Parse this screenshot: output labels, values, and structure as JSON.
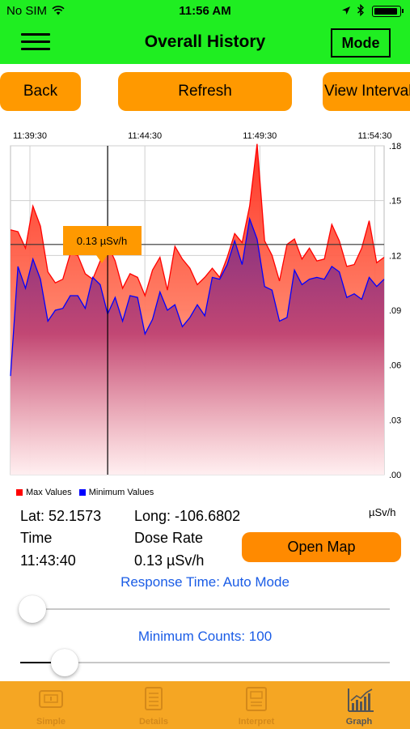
{
  "status_bar": {
    "carrier": "No SIM",
    "time": "11:56 AM"
  },
  "nav": {
    "title": "Overall History",
    "mode_label": "Mode",
    "menu_icon": "hamburger-menu-icon"
  },
  "buttons": {
    "back": "Back",
    "refresh": "Refresh",
    "view_interval": "View Interval"
  },
  "chart_data": {
    "type": "area",
    "x_tick_labels": [
      "11:39:30",
      "11:44:30",
      "11:49:30",
      "11:54:30"
    ],
    "y_tick_labels": [
      ".18",
      ".15",
      ".12",
      ".09",
      ".06",
      ".03",
      ".00"
    ],
    "ylim": [
      0,
      0.18
    ],
    "grid": true,
    "series": [
      {
        "name": "Max Values",
        "color": "#ff0000",
        "values": [
          0.134,
          0.133,
          0.124,
          0.147,
          0.136,
          0.111,
          0.105,
          0.107,
          0.121,
          0.12,
          0.11,
          0.107,
          0.117,
          0.126,
          0.117,
          0.102,
          0.11,
          0.108,
          0.098,
          0.112,
          0.119,
          0.101,
          0.125,
          0.118,
          0.113,
          0.104,
          0.108,
          0.113,
          0.108,
          0.119,
          0.132,
          0.127,
          0.147,
          0.181,
          0.128,
          0.12,
          0.106,
          0.126,
          0.129,
          0.118,
          0.124,
          0.117,
          0.118,
          0.137,
          0.128,
          0.114,
          0.115,
          0.124,
          0.139,
          0.116,
          0.119
        ]
      },
      {
        "name": "Minimum Values",
        "color": "#0000ff",
        "values": [
          0.054,
          0.114,
          0.102,
          0.118,
          0.107,
          0.084,
          0.09,
          0.091,
          0.098,
          0.098,
          0.091,
          0.108,
          0.104,
          0.088,
          0.097,
          0.084,
          0.098,
          0.097,
          0.077,
          0.085,
          0.1,
          0.09,
          0.093,
          0.081,
          0.086,
          0.093,
          0.087,
          0.108,
          0.107,
          0.115,
          0.128,
          0.115,
          0.14,
          0.129,
          0.103,
          0.101,
          0.084,
          0.086,
          0.112,
          0.104,
          0.107,
          0.108,
          0.107,
          0.114,
          0.111,
          0.097,
          0.099,
          0.096,
          0.108,
          0.103,
          0.107
        ]
      }
    ],
    "tooltip": "0.13 µSv/h",
    "crosshair_value": 0.126,
    "crosshair_index": 13
  },
  "unit_label": "µSv/h",
  "readout": {
    "lat": "Lat: 52.1573",
    "long": "Long: -106.6802",
    "time_label": "Time",
    "time_value": "11:43:40",
    "dose_label": "Dose Rate",
    "dose_value": "0.13 µSv/h",
    "open_map": "Open Map"
  },
  "sliders": {
    "response_time_label": "Response Time: Auto Mode",
    "response_time_level": 0.0,
    "min_counts_label": "Minimum Counts: 100",
    "min_counts_level": 0.12
  },
  "tabs": [
    {
      "label": "Simple",
      "icon": "simple-meter-icon",
      "active": false
    },
    {
      "label": "Details",
      "icon": "details-list-icon",
      "active": false
    },
    {
      "label": "Interpret",
      "icon": "interpret-document-icon",
      "active": false
    },
    {
      "label": "Graph",
      "icon": "graph-bars-icon",
      "active": true
    }
  ]
}
